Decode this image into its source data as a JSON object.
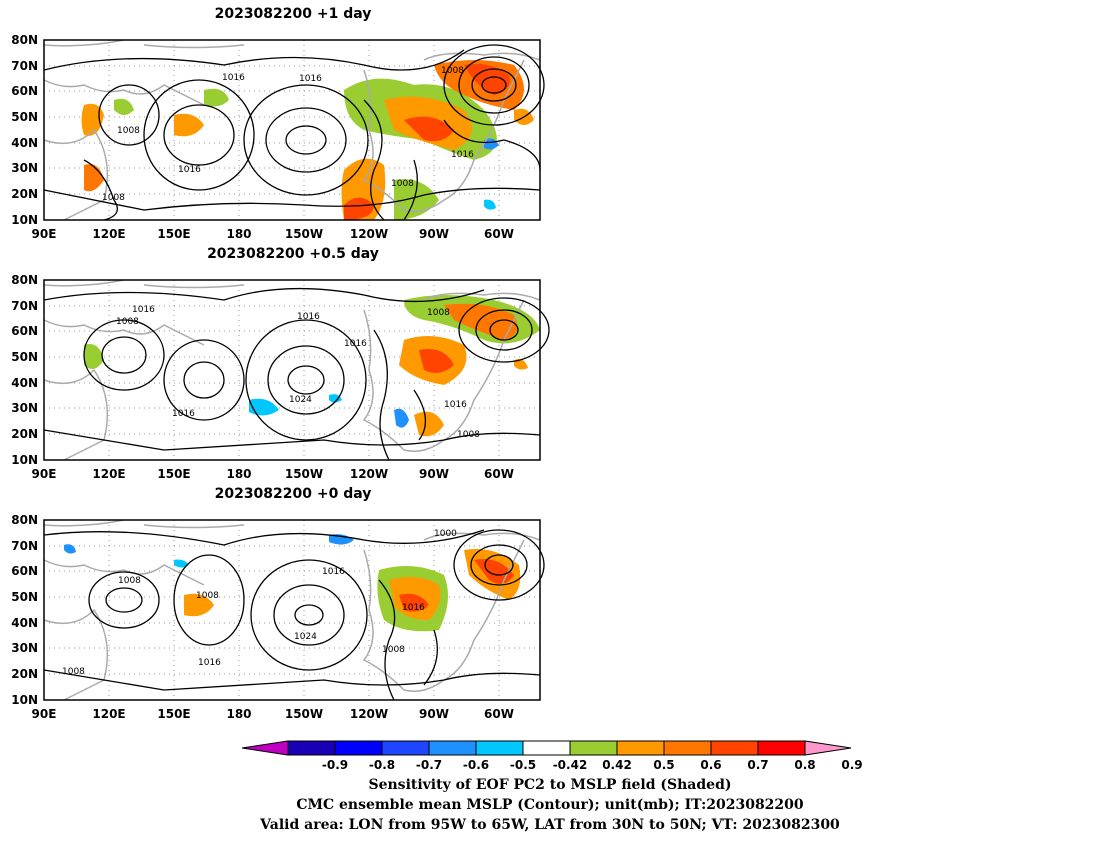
{
  "panels": [
    {
      "title": "2023082200  +1 day",
      "contour_labels": [
        "1016",
        "1016",
        "1008",
        "1008",
        "1016",
        "1008",
        "1008",
        "1016"
      ]
    },
    {
      "title": "2023082200  +0.5 day",
      "contour_labels": [
        "1016",
        "1008",
        "1016",
        "1008",
        "1016",
        "1024",
        "1016",
        "1016",
        "1008"
      ]
    },
    {
      "title": "2023082200  +0 day",
      "contour_labels": [
        "1000",
        "1008",
        "1008",
        "1016",
        "1016",
        "1024",
        "1016",
        "1008",
        "1008"
      ]
    }
  ],
  "axes": {
    "lat_labels": [
      "80N",
      "70N",
      "60N",
      "50N",
      "40N",
      "30N",
      "20N",
      "10N"
    ],
    "lon_labels": [
      "90E",
      "120E",
      "150E",
      "180",
      "150W",
      "120W",
      "90W",
      "60W"
    ]
  },
  "colorbar": {
    "labels": [
      "-0.9",
      "-0.8",
      "-0.7",
      "-0.6",
      "-0.5",
      "-0.42",
      "0.42",
      "0.5",
      "0.6",
      "0.7",
      "0.8",
      "0.9"
    ],
    "colors": [
      "#c000c0",
      "#1a00b4",
      "#0000ff",
      "#1e46ff",
      "#1e90ff",
      "#00c8ff",
      "#ffffff",
      "#9acd32",
      "#ff9900",
      "#ff7700",
      "#ff4400",
      "#ff0000",
      "#ff99cc"
    ]
  },
  "caption": {
    "line1": "Sensitivity of EOF PC2 to MSLP field (Shaded)",
    "line2": "CMC ensemble mean MSLP (Contour); unit(mb); IT:2023082200",
    "line3": "Valid area: LON from 95W to 65W, LAT from 30N to 50N; VT: 2023082300"
  }
}
